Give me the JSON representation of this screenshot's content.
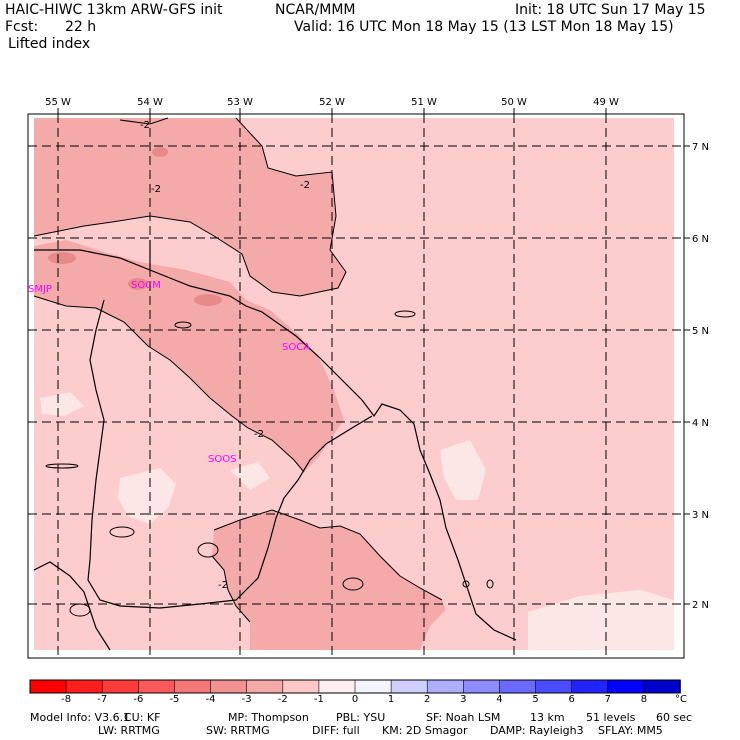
{
  "header": {
    "model_title": "HAIC-HIWC 13km ARW-GFS init",
    "org": "NCAR/MMM",
    "init": "Init: 18 UTC Sun 17 May 15",
    "fcst_label": "Fcst:",
    "fcst_value": "22 h",
    "valid": "Valid: 16 UTC Mon 18 May 15 (13 LST Mon 18 May 15)",
    "field": "Lifted index"
  },
  "map": {
    "lon_labels": [
      "55 W",
      "54 W",
      "53 W",
      "52 W",
      "51 W",
      "50 W",
      "49 W"
    ],
    "lat_labels": [
      "7 N",
      "6 N",
      "5 N",
      "4 N",
      "3 N",
      "2 N"
    ],
    "stations": [
      "SMJP",
      "SOCM",
      "SOCA",
      "SOOS"
    ],
    "contour_labels": [
      "-2",
      "-2",
      "-2",
      "-2",
      "-2"
    ],
    "colors": {
      "fill_main": "#fdcccc",
      "fill_mid": "#f5aaaa",
      "fill_dark": "#e58b8b",
      "fill_light": "#fde6e6",
      "station": "#ff00ff"
    }
  },
  "colorbar": {
    "unit": "°C",
    "ticks": [
      "-8",
      "-7",
      "-6",
      "-5",
      "-4",
      "-3",
      "-2",
      "-1",
      "0",
      "1",
      "2",
      "3",
      "4",
      "5",
      "6",
      "7",
      "8"
    ],
    "colors": [
      "#ff0000",
      "#ff1e1e",
      "#ff3c3c",
      "#fa5a5a",
      "#f47777",
      "#f09292",
      "#f5aaaa",
      "#fcc8c8",
      "#fff0f0",
      "#f4f4ff",
      "#cfcfff",
      "#aeaeff",
      "#8c8cff",
      "#6a6aff",
      "#4b4bff",
      "#2323ff",
      "#0000ff",
      "#0000cc"
    ]
  },
  "footer": {
    "line1": [
      {
        "k": "Model Info: V3.6.1"
      },
      {
        "k": "CU: KF"
      },
      {
        "k": "MP: Thompson"
      },
      {
        "k": "PBL: YSU"
      },
      {
        "k": "SF: Noah LSM"
      },
      {
        "k": "13 km"
      },
      {
        "k": "51 levels"
      },
      {
        "k": "60 sec"
      }
    ],
    "line2": [
      {
        "k": "LW: RRTMG"
      },
      {
        "k": "SW: RRTMG"
      },
      {
        "k": "DIFF: full"
      },
      {
        "k": "KM: 2D Smagor"
      },
      {
        "k": "DAMP: Rayleigh3"
      },
      {
        "k": "SFLAY: MM5"
      }
    ]
  }
}
